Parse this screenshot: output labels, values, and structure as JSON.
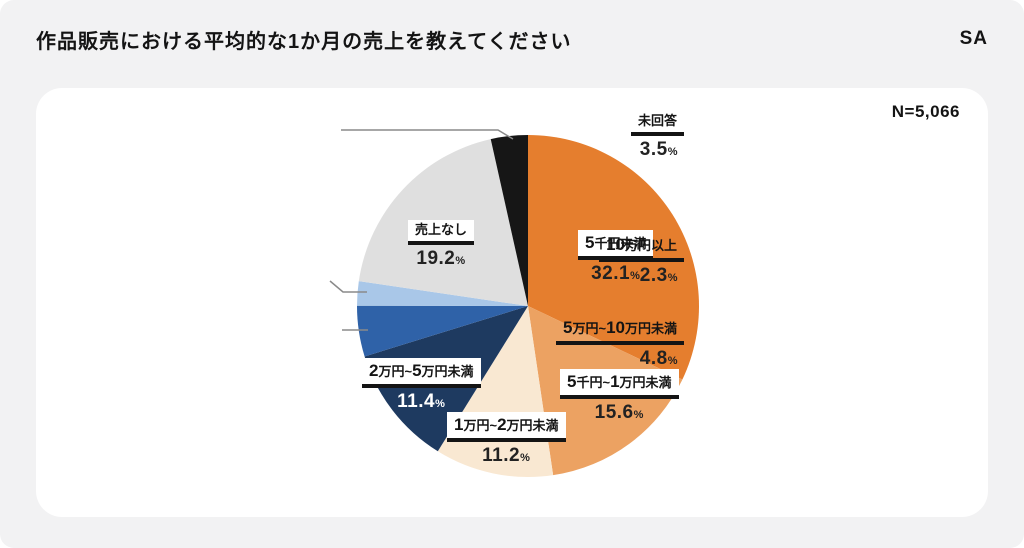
{
  "header": {
    "title": "作品販売における平均的な1か月の売上を教えてください",
    "question_type": "SA"
  },
  "card": {
    "n_label": "N=5,066"
  },
  "chart_data": {
    "type": "pie",
    "title": "作品販売における平均的な1か月の売上を教えてください",
    "sample_label": "N=5,066",
    "sample_n": 5066,
    "unit": "%",
    "start_angle_deg": 0,
    "direction": "clockwise",
    "legend": "none",
    "slices": [
      {
        "label": "5千円未満",
        "value": 32.1,
        "color": "#E57E2E",
        "pct_text_color": "#222222"
      },
      {
        "label": "5千円~1万円未満",
        "value": 15.6,
        "color": "#ECA262",
        "pct_text_color": "#222222"
      },
      {
        "label": "1万円~2万円未満",
        "value": 11.2,
        "color": "#F9E8D2",
        "pct_text_color": "#222222"
      },
      {
        "label": "2万円~5万円未満",
        "value": 11.4,
        "color": "#1E3A60",
        "pct_text_color": "#FFFFFF"
      },
      {
        "label": "5万円~10万円未満",
        "value": 4.8,
        "color": "#2F62A8",
        "pct_text_color": "#222222"
      },
      {
        "label": "10万円以上",
        "value": 2.3,
        "color": "#A9C7E8",
        "pct_text_color": "#222222"
      },
      {
        "label": "売上なし",
        "value": 19.2,
        "color": "#DFDFDF",
        "pct_text_color": "#222222"
      },
      {
        "label": "未回答",
        "value": 3.5,
        "color": "#161616",
        "pct_text_color": "#222222"
      }
    ],
    "leader_line_color": "#8a8a8a"
  }
}
